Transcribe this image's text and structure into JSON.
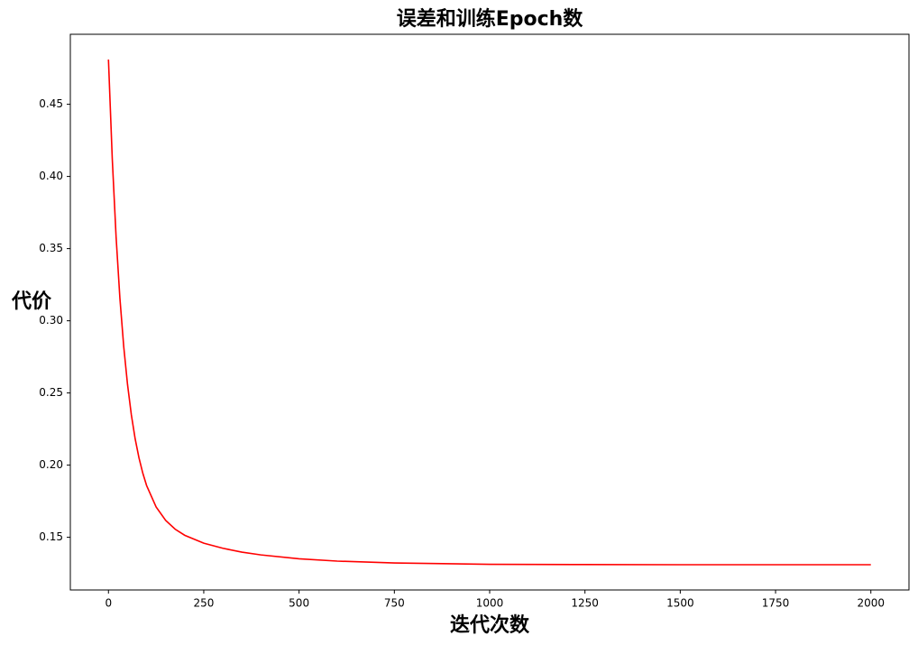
{
  "chart_data": {
    "type": "line",
    "title": "误差和训练Epoch数",
    "xlabel": "迭代次数",
    "ylabel": "代价",
    "color": "#ff0000",
    "x": [
      0,
      10,
      20,
      30,
      40,
      50,
      60,
      70,
      80,
      90,
      100,
      125,
      150,
      175,
      200,
      250,
      300,
      350,
      400,
      500,
      600,
      750,
      1000,
      1250,
      1500,
      1750,
      2000
    ],
    "values": [
      0.481,
      0.4122,
      0.3582,
      0.3157,
      0.2823,
      0.2559,
      0.2349,
      0.2183,
      0.2051,
      0.1945,
      0.1859,
      0.171,
      0.1617,
      0.1556,
      0.1514,
      0.1459,
      0.1424,
      0.1397,
      0.1378,
      0.1351,
      0.1335,
      0.1322,
      0.1313,
      0.1311,
      0.131,
      0.131,
      0.131
    ],
    "xlim": [
      -100,
      2100
    ],
    "ylim": [
      0.1135,
      0.4985
    ],
    "xticks": [
      0,
      250,
      500,
      750,
      1000,
      1250,
      1500,
      1750,
      2000
    ],
    "yticks": [
      0.15,
      {
        "value": 0.2,
        "label": "0.20"
      },
      0.25,
      {
        "value": 0.3,
        "label": "0.30"
      },
      0.35,
      {
        "value": 0.4,
        "label": "0.40"
      },
      0.45
    ]
  }
}
